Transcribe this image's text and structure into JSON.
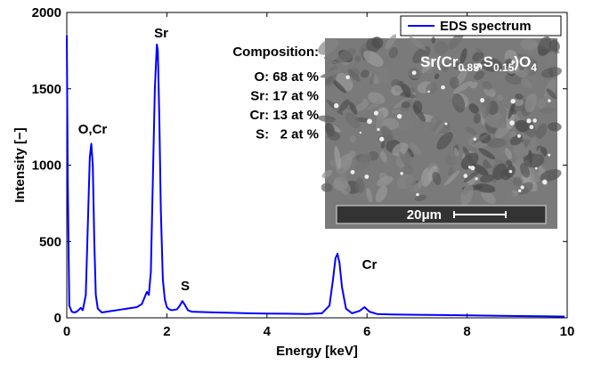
{
  "chart_data": {
    "type": "line",
    "xlabel": "Energy [keV]",
    "ylabel": "Intensity [−]",
    "x": [
      0,
      0.02,
      0.05,
      0.1,
      0.15,
      0.2,
      0.25,
      0.28,
      0.32,
      0.38,
      0.42,
      0.46,
      0.49,
      0.52,
      0.55,
      0.58,
      0.62,
      0.7,
      0.8,
      0.9,
      1.0,
      1.1,
      1.2,
      1.3,
      1.4,
      1.5,
      1.55,
      1.6,
      1.64,
      1.68,
      1.72,
      1.76,
      1.8,
      1.82,
      1.85,
      1.88,
      1.92,
      1.96,
      2.0,
      2.05,
      2.1,
      2.2,
      2.26,
      2.31,
      2.36,
      2.42,
      2.5,
      2.7,
      3.0,
      3.3,
      3.6,
      4.0,
      4.4,
      4.8,
      5.1,
      5.25,
      5.32,
      5.37,
      5.41,
      5.45,
      5.5,
      5.58,
      5.7,
      5.85,
      5.95,
      6.05,
      6.2,
      6.5,
      7,
      7.5,
      8,
      8.5,
      9,
      9.5,
      9.95
    ],
    "series": [
      {
        "name": "EDS spectrum",
        "color": "#0000ff",
        "values": [
          1850,
          900,
          80,
          40,
          35,
          40,
          55,
          65,
          50,
          150,
          600,
          1050,
          1140,
          1000,
          500,
          150,
          60,
          35,
          40,
          45,
          50,
          55,
          60,
          65,
          70,
          90,
          130,
          170,
          150,
          300,
          900,
          1500,
          1790,
          1750,
          1300,
          700,
          250,
          120,
          70,
          55,
          50,
          55,
          80,
          110,
          85,
          50,
          40,
          38,
          35,
          33,
          30,
          28,
          27,
          25,
          30,
          80,
          250,
          390,
          420,
          360,
          200,
          60,
          30,
          45,
          70,
          40,
          25,
          22,
          20,
          18,
          16,
          14,
          12,
          10,
          8
        ]
      }
    ],
    "xlim": [
      0,
      10
    ],
    "xticks": [
      0,
      2,
      4,
      6,
      8,
      10
    ],
    "ylim": [
      0,
      2000
    ],
    "yticks": [
      0,
      500,
      1000,
      1500,
      2000
    ],
    "grid": false,
    "legend": "upper right",
    "annotations": [
      "O,Cr",
      "Sr",
      "S",
      "Cr"
    ],
    "composition": {
      "title": "Composition:",
      "lines": [
        "O: 68 at %",
        "Sr: 17 at %",
        "Cr: 13 at %",
        "S:   2 at %"
      ]
    },
    "inset": {
      "formula": [
        "Sr(Cr",
        "0.85",
        ",S",
        "0.15",
        ")O",
        "4"
      ],
      "scale_bar": "20μm"
    }
  }
}
